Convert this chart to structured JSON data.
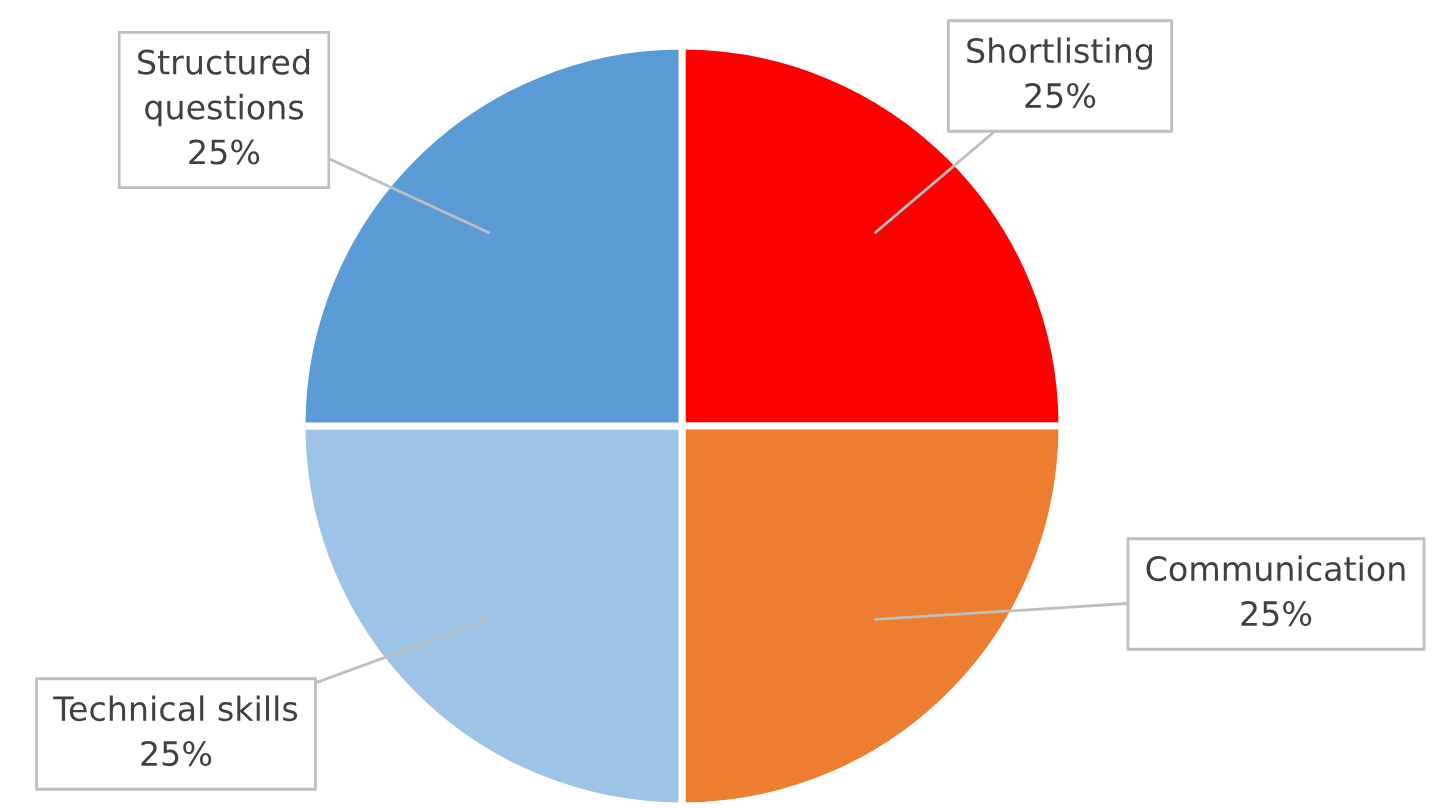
{
  "chart_data": {
    "type": "pie",
    "categories": [
      "Shortlisting",
      "Communication",
      "Technical skills",
      "Structured\nquestions"
    ],
    "values": [
      25,
      25,
      25,
      25
    ],
    "colors": [
      "#ff0000",
      "#ed7d31",
      "#9dc3e6",
      "#5b9bd5"
    ],
    "value_labels": [
      "25%",
      "25%",
      "25%",
      "25%"
    ]
  }
}
